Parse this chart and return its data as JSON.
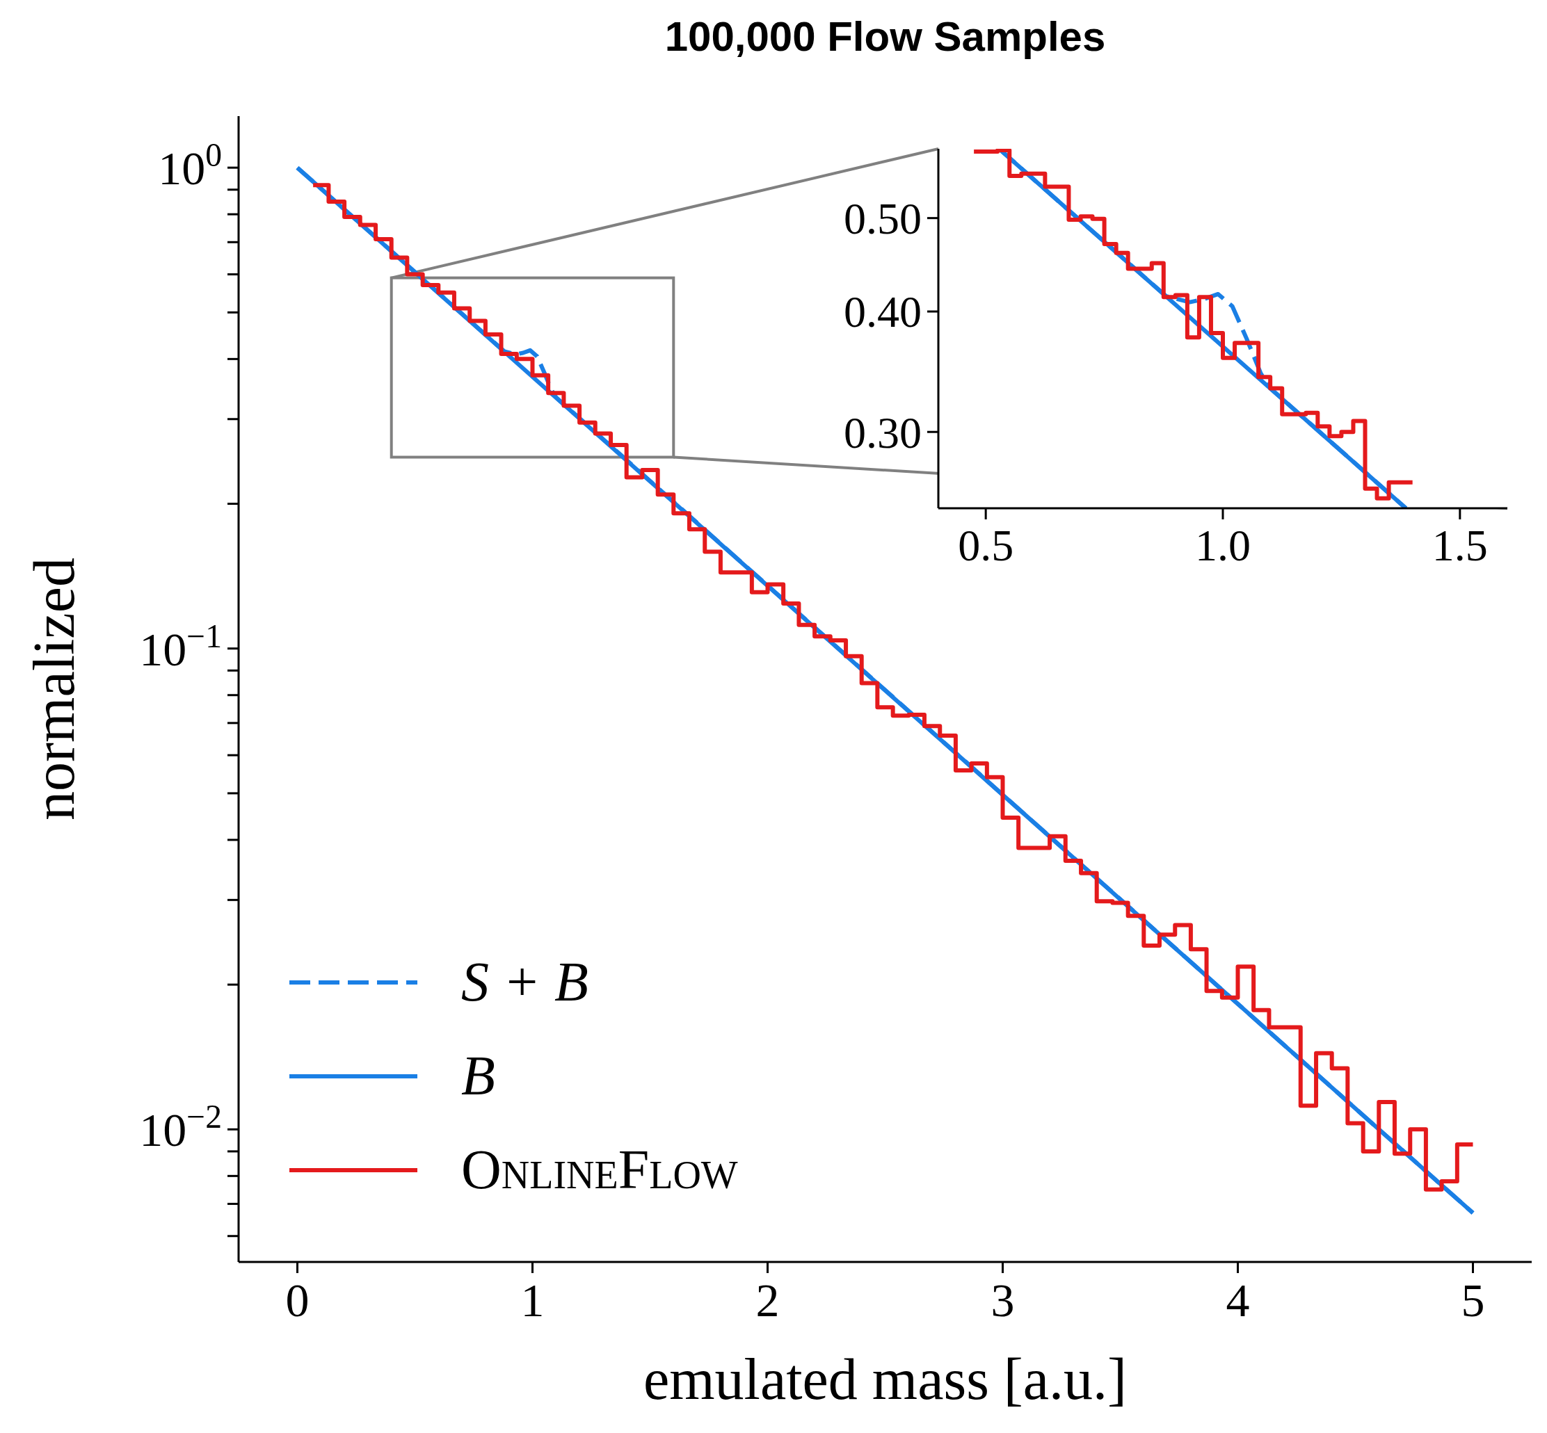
{
  "chart_data": [
    {
      "type": "line",
      "title": "100,000 Flow Samples",
      "xlabel": "emulated mass [a.u.]",
      "ylabel": "normalized",
      "log": "y",
      "xlim": [
        -0.25,
        5.25
      ],
      "ylim": [
        0.0053,
        1.28
      ],
      "xticks": [
        0,
        1,
        2,
        3,
        4,
        5
      ],
      "yticks": [
        {
          "value": 0.006,
          "label": null
        },
        {
          "value": 0.007,
          "label": null
        },
        {
          "value": 0.008,
          "label": null
        },
        {
          "value": 0.009,
          "label": null
        },
        {
          "value": 0.01,
          "label": "10$^{−2}$"
        },
        {
          "value": 0.02,
          "label": null
        },
        {
          "value": 0.03,
          "label": null
        },
        {
          "value": 0.04,
          "label": null
        },
        {
          "value": 0.05,
          "label": null
        },
        {
          "value": 0.06,
          "label": null
        },
        {
          "value": 0.07,
          "label": null
        },
        {
          "value": 0.08,
          "label": null
        },
        {
          "value": 0.09,
          "label": null
        },
        {
          "value": 0.1,
          "label": "10$^{−1}$"
        },
        {
          "value": 0.2,
          "label": null
        },
        {
          "value": 0.3,
          "label": null
        },
        {
          "value": 0.4,
          "label": null
        },
        {
          "value": 0.5,
          "label": null
        },
        {
          "value": 0.6,
          "label": null
        },
        {
          "value": 0.7,
          "label": null
        },
        {
          "value": 0.8,
          "label": null
        },
        {
          "value": 0.9,
          "label": null
        },
        {
          "value": 1,
          "label": "10$^{0}$"
        }
      ],
      "legend": "bottom left",
      "series": [
        {
          "name": "S + B",
          "type": "line",
          "line_style": "dashed",
          "color": "#1a7fe5",
          "x": [
            0,
            0.88,
            0.93,
            0.96,
            0.99,
            1.02,
            1.05,
            1.08,
            1.1,
            5
          ],
          "values": [
            1,
            0.415,
            0.409,
            0.412,
            0.417,
            0.405,
            0.375,
            0.345,
            0.333,
            0.0067
          ]
        },
        {
          "name": "B",
          "type": "line",
          "line_style": "solid",
          "color": "#1a7fe5",
          "x": [
            0,
            5
          ],
          "values": [
            1,
            0.0067
          ]
        },
        {
          "name": "OnlineFlow",
          "type": "step",
          "line_style": "solid",
          "color": "#e41a1c",
          "x": [
            0.067,
            0.133,
            0.2,
            0.267,
            0.333,
            0.4,
            0.467,
            0.533,
            0.6,
            0.667,
            0.733,
            0.8,
            0.867,
            0.933,
            1.0,
            1.067,
            1.133,
            1.2,
            1.267,
            1.333,
            1.4,
            1.467,
            1.533,
            1.6,
            1.667,
            1.733,
            1.8,
            1.867,
            1.933,
            2.0,
            2.067,
            2.133,
            2.2,
            2.267,
            2.333,
            2.4,
            2.467,
            2.533,
            2.6,
            2.667,
            2.733,
            2.8,
            2.867,
            2.933,
            3.0,
            3.067,
            3.133,
            3.2,
            3.267,
            3.333,
            3.4,
            3.467,
            3.533,
            3.6,
            3.667,
            3.733,
            3.8,
            3.867,
            3.933,
            4.0,
            4.067,
            4.133,
            4.2,
            4.267,
            4.333,
            4.4,
            4.467,
            4.533,
            4.6,
            4.667,
            4.733,
            4.8,
            4.867,
            4.933,
            5.0
          ],
          "values": [
            0.92,
            0.85,
            0.79,
            0.76,
            0.71,
            0.65,
            0.6,
            0.57,
            0.55,
            0.51,
            0.48,
            0.45,
            0.41,
            0.4,
            0.37,
            0.34,
            0.32,
            0.295,
            0.28,
            0.265,
            0.227,
            0.235,
            0.209,
            0.191,
            0.177,
            0.159,
            0.144,
            0.144,
            0.131,
            0.136,
            0.124,
            0.112,
            0.106,
            0.104,
            0.0964,
            0.0847,
            0.0755,
            0.0725,
            0.0728,
            0.069,
            0.0659,
            0.0558,
            0.0577,
            0.054,
            0.0445,
            0.0385,
            0.0385,
            0.0407,
            0.0362,
            0.0341,
            0.0298,
            0.0296,
            0.0278,
            0.0241,
            0.0254,
            0.0266,
            0.0237,
            0.0194,
            0.0188,
            0.0218,
            0.0177,
            0.0163,
            0.0163,
            0.0112,
            0.0144,
            0.0134,
            0.0103,
            0.009,
            0.0114,
            0.0089,
            0.01,
            0.0075,
            0.0078,
            0.0093,
            0.0093
          ]
        }
      ]
    },
    {
      "type": "line",
      "log": "y",
      "xlim": [
        0.4,
        1.6
      ],
      "ylim": [
        0.25,
        0.59
      ],
      "xticks": [
        0.5,
        {
          "value": 1,
          "label": "1.0"
        },
        1.5
      ],
      "yticks": [
        {
          "value": 0.3,
          "label": "0.30"
        },
        {
          "value": 0.4,
          "label": "0.40"
        },
        {
          "value": 0.5,
          "label": "0.50"
        }
      ],
      "series": [
        {
          "type": "line",
          "line_style": "dashed",
          "color": "#1a7fe5",
          "x": [
            0.528,
            0.88,
            0.93,
            0.96,
            0.99,
            1.02,
            1.05,
            1.08,
            1.1,
            1.386
          ],
          "values": [
            0.59,
            0.415,
            0.409,
            0.412,
            0.417,
            0.405,
            0.375,
            0.345,
            0.333,
            0.25
          ]
        },
        {
          "type": "line",
          "line_style": "solid",
          "color": "#1a7fe5",
          "x": [
            0.528,
            1.386
          ],
          "values": [
            0.59,
            0.25
          ]
        },
        {
          "type": "step",
          "line_style": "solid",
          "color": "#e41a1c",
          "x": [
            0.475,
            0.5,
            0.525,
            0.55,
            0.575,
            0.6,
            0.625,
            0.65,
            0.675,
            0.7,
            0.725,
            0.75,
            0.775,
            0.8,
            0.825,
            0.85,
            0.875,
            0.9,
            0.925,
            0.95,
            0.975,
            1.0,
            1.025,
            1.05,
            1.075,
            1.1,
            1.125,
            1.15,
            1.175,
            1.2,
            1.225,
            1.25,
            1.275,
            1.3,
            1.325,
            1.35,
            1.375,
            1.4
          ],
          "values": [
            0.586,
            0.586,
            0.588,
            0.553,
            0.556,
            0.556,
            0.539,
            0.539,
            0.498,
            0.502,
            0.499,
            0.47,
            0.46,
            0.443,
            0.443,
            0.449,
            0.414,
            0.416,
            0.376,
            0.414,
            0.38,
            0.358,
            0.371,
            0.371,
            0.342,
            0.333,
            0.313,
            0.313,
            0.314,
            0.304,
            0.297,
            0.3,
            0.308,
            0.262,
            0.256,
            0.266,
            0.266,
            0.266
          ]
        }
      ]
    }
  ]
}
